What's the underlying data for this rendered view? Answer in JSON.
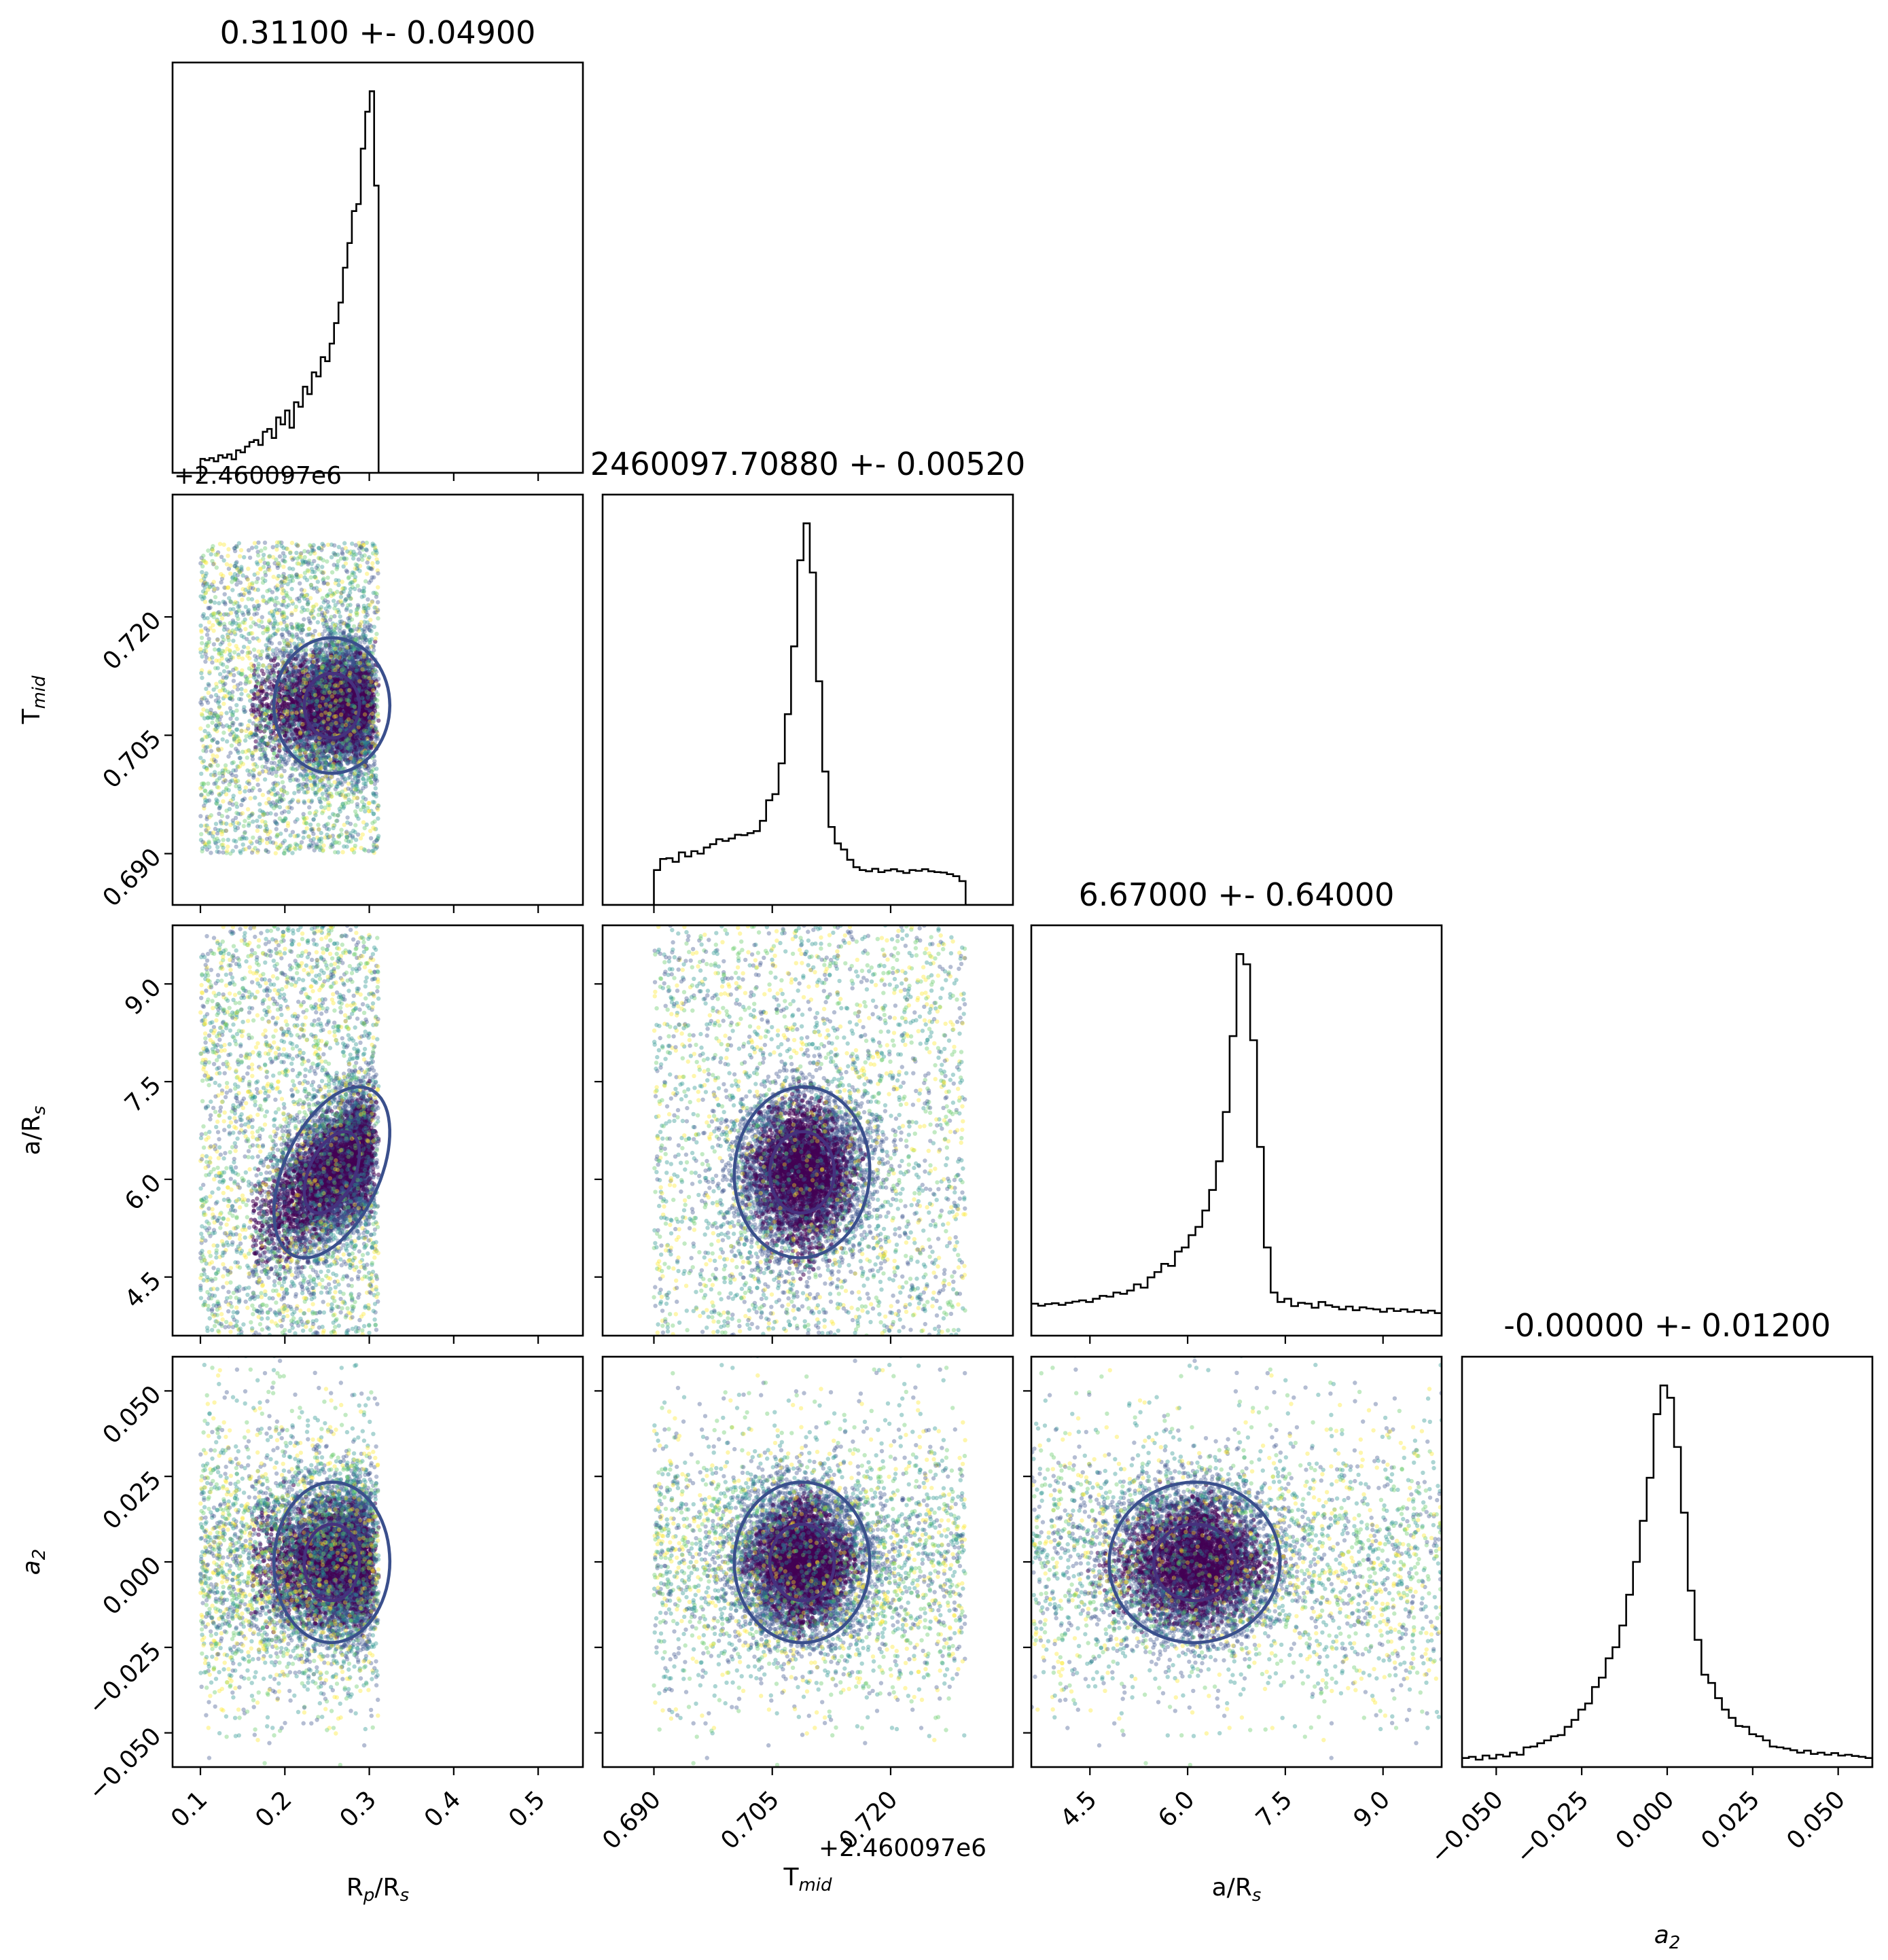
{
  "chart_data": {
    "type": "corner",
    "parameters": [
      {
        "key": "rp",
        "label_main": "R",
        "label_sub": "p",
        "label_tail": "/R",
        "label_sub2": "s",
        "italic": false,
        "title": "0.31100 +- 0.04900",
        "range": [
          0.067,
          0.553
        ],
        "ticks": [
          0.1,
          0.2,
          0.3,
          0.4,
          0.5
        ],
        "tick_labels": [
          "0.1",
          "0.2",
          "0.3",
          "0.4",
          "0.5"
        ],
        "offset": "",
        "prior": [
          0.1,
          0.311
        ]
      },
      {
        "key": "tmid",
        "label_main": "T",
        "label_sub": "mid",
        "label_tail": "",
        "label_sub2": "",
        "italic": false,
        "title": "2460097.70880 +- 0.00520",
        "range": [
          0.6835,
          0.7355
        ],
        "ticks": [
          0.69,
          0.705,
          0.72
        ],
        "tick_labels": [
          "0.690",
          "0.705",
          "0.720"
        ],
        "offset": "+2.460097e6",
        "prior": [
          0.69,
          0.7295
        ]
      },
      {
        "key": "ars",
        "label_main": "a/R",
        "label_sub": "s",
        "label_tail": "",
        "label_sub2": "",
        "italic": false,
        "title": "6.67000 +- 0.64000",
        "range": [
          3.6,
          9.9
        ],
        "ticks": [
          4.5,
          6.0,
          7.5,
          9.0
        ],
        "tick_labels": [
          "4.5",
          "6.0",
          "7.5",
          "9.0"
        ],
        "offset": "",
        "prior": [
          3.6,
          9.9
        ]
      },
      {
        "key": "a2",
        "label_main": "a",
        "label_sub": "2",
        "label_tail": "",
        "label_sub2": "",
        "italic": true,
        "title": "-0.00000 +- 0.01200",
        "range": [
          -0.06,
          0.06
        ],
        "ticks": [
          -0.05,
          -0.025,
          0.0,
          0.025,
          0.05
        ],
        "tick_labels": [
          "−0.050",
          "−0.025",
          "0.000",
          "0.025",
          "0.050"
        ],
        "offset": "",
        "prior": [
          -0.06,
          0.06
        ]
      }
    ],
    "histograms": {
      "rp": [
        0.034,
        0.031,
        0.036,
        0.028,
        0.043,
        0.037,
        0.045,
        0.033,
        0.055,
        0.05,
        0.064,
        0.075,
        0.08,
        0.068,
        0.1,
        0.107,
        0.085,
        0.135,
        0.118,
        0.152,
        0.11,
        0.172,
        0.161,
        0.21,
        0.192,
        0.245,
        0.235,
        0.282,
        0.272,
        0.315,
        0.365,
        0.415,
        0.5,
        0.56,
        0.638,
        0.655,
        0.79,
        0.88,
        0.93,
        0.7
      ],
      "tmid": [
        0.085,
        0.112,
        0.114,
        0.105,
        0.128,
        0.118,
        0.131,
        0.125,
        0.14,
        0.148,
        0.16,
        0.156,
        0.162,
        0.171,
        0.17,
        0.175,
        0.18,
        0.205,
        0.255,
        0.27,
        0.345,
        0.465,
        0.63,
        0.84,
        0.93,
        0.81,
        0.545,
        0.325,
        0.19,
        0.15,
        0.135,
        0.11,
        0.092,
        0.085,
        0.082,
        0.088,
        0.08,
        0.084,
        0.087,
        0.082,
        0.078,
        0.085,
        0.083,
        0.087,
        0.082,
        0.08,
        0.079,
        0.075,
        0.07,
        0.058
      ],
      "ars": [
        0.078,
        0.073,
        0.077,
        0.079,
        0.075,
        0.08,
        0.083,
        0.086,
        0.082,
        0.09,
        0.097,
        0.095,
        0.105,
        0.102,
        0.11,
        0.125,
        0.117,
        0.142,
        0.155,
        0.175,
        0.17,
        0.205,
        0.215,
        0.245,
        0.265,
        0.305,
        0.355,
        0.425,
        0.545,
        0.73,
        0.93,
        0.905,
        0.72,
        0.46,
        0.215,
        0.105,
        0.082,
        0.09,
        0.072,
        0.08,
        0.078,
        0.068,
        0.082,
        0.074,
        0.07,
        0.064,
        0.071,
        0.062,
        0.069,
        0.066,
        0.064,
        0.058,
        0.066,
        0.06,
        0.064,
        0.058,
        0.062,
        0.056,
        0.061,
        0.055
      ],
      "a2": [
        0.022,
        0.025,
        0.018,
        0.028,
        0.021,
        0.03,
        0.026,
        0.035,
        0.03,
        0.048,
        0.05,
        0.058,
        0.065,
        0.075,
        0.078,
        0.098,
        0.115,
        0.14,
        0.155,
        0.195,
        0.218,
        0.265,
        0.292,
        0.345,
        0.42,
        0.5,
        0.6,
        0.705,
        0.86,
        0.93,
        0.9,
        0.78,
        0.62,
        0.43,
        0.31,
        0.225,
        0.205,
        0.168,
        0.14,
        0.12,
        0.1,
        0.098,
        0.08,
        0.075,
        0.065,
        0.05,
        0.048,
        0.045,
        0.041,
        0.035,
        0.04,
        0.032,
        0.035,
        0.03,
        0.034,
        0.028,
        0.03,
        0.027,
        0.025,
        0.022
      ]
    },
    "posterior_mode": {
      "rp": 0.3,
      "tmid": 0.7088,
      "ars": 6.5,
      "a2": 0.0
    },
    "posterior_width": {
      "rp": 0.045,
      "tmid": 0.0045,
      "ars": 0.5,
      "a2": 0.011
    },
    "contour_color": "#3a4f8c",
    "scatter_colors": [
      "#440154",
      "#3b528b",
      "#21918c",
      "#5ec962",
      "#fde725"
    ],
    "grid": false,
    "legend": "none"
  }
}
